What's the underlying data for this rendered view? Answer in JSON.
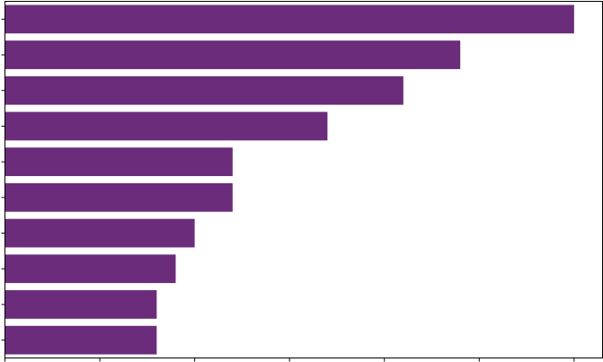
{
  "chart_data": {
    "type": "bar",
    "orientation": "horizontal",
    "categories": [
      "",
      "",
      "",
      "",
      "",
      "",
      "",
      "",
      "",
      ""
    ],
    "values": [
      30,
      24,
      21,
      17,
      12,
      12,
      10,
      9,
      8,
      8
    ],
    "xlim": [
      0,
      31.5
    ],
    "x_ticks": [
      0,
      5,
      10,
      15,
      20,
      25,
      30
    ],
    "title": "",
    "xlabel": "",
    "ylabel": "",
    "grid": false,
    "legend": "none",
    "bar_color": "#6b2c7b",
    "axis_color": "#000000"
  }
}
